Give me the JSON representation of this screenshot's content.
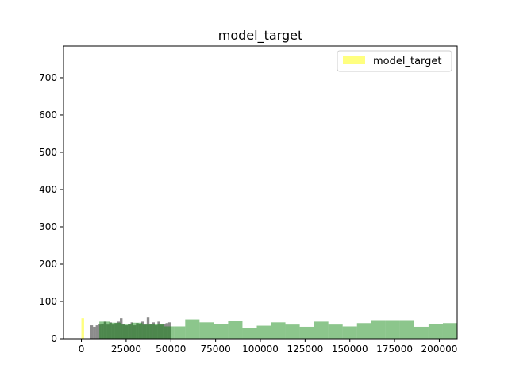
{
  "chart_data": {
    "type": "histogram",
    "title": "model_target",
    "xlabel": "",
    "ylabel": "",
    "xlim": [
      -10000,
      210000
    ],
    "ylim": [
      0,
      785
    ],
    "xticks": [
      0,
      25000,
      50000,
      75000,
      100000,
      125000,
      150000,
      175000,
      200000
    ],
    "yticks": [
      0,
      100,
      200,
      300,
      400,
      500,
      600,
      700
    ],
    "grid": false,
    "legend": {
      "position": "top-right",
      "entries": [
        "model_target"
      ]
    },
    "series": [
      {
        "name": "model_target",
        "color": "#ffff00",
        "alpha": 0.5,
        "bins": [
          {
            "x0": 0,
            "x1": 1500,
            "count": 55
          }
        ]
      },
      {
        "color": "#000000",
        "alpha": 0.45,
        "bins": [
          {
            "x0": 5000,
            "x1": 6500,
            "count": 36
          },
          {
            "x0": 6500,
            "x1": 8000,
            "count": 32
          },
          {
            "x0": 8000,
            "x1": 9500,
            "count": 36
          },
          {
            "x0": 9500,
            "x1": 11000,
            "count": 38
          },
          {
            "x0": 11000,
            "x1": 12500,
            "count": 40
          },
          {
            "x0": 12500,
            "x1": 14000,
            "count": 46
          },
          {
            "x0": 14000,
            "x1": 15500,
            "count": 38
          },
          {
            "x0": 15500,
            "x1": 17000,
            "count": 44
          },
          {
            "x0": 17000,
            "x1": 18500,
            "count": 38
          },
          {
            "x0": 18500,
            "x1": 20000,
            "count": 42
          },
          {
            "x0": 20000,
            "x1": 21500,
            "count": 46
          },
          {
            "x0": 21500,
            "x1": 23000,
            "count": 55
          },
          {
            "x0": 23000,
            "x1": 24500,
            "count": 40
          },
          {
            "x0": 24500,
            "x1": 26000,
            "count": 36
          },
          {
            "x0": 26000,
            "x1": 27500,
            "count": 40
          },
          {
            "x0": 27500,
            "x1": 29000,
            "count": 44
          },
          {
            "x0": 29000,
            "x1": 30500,
            "count": 36
          },
          {
            "x0": 30500,
            "x1": 32000,
            "count": 42
          },
          {
            "x0": 32000,
            "x1": 33500,
            "count": 40
          },
          {
            "x0": 33500,
            "x1": 35000,
            "count": 46
          },
          {
            "x0": 35000,
            "x1": 36500,
            "count": 38
          },
          {
            "x0": 36500,
            "x1": 38000,
            "count": 57
          },
          {
            "x0": 38000,
            "x1": 39500,
            "count": 40
          },
          {
            "x0": 39500,
            "x1": 41000,
            "count": 44
          },
          {
            "x0": 41000,
            "x1": 42500,
            "count": 36
          },
          {
            "x0": 42500,
            "x1": 44000,
            "count": 46
          },
          {
            "x0": 44000,
            "x1": 45500,
            "count": 38
          },
          {
            "x0": 45500,
            "x1": 47000,
            "count": 40
          },
          {
            "x0": 47000,
            "x1": 48500,
            "count": 42
          },
          {
            "x0": 48500,
            "x1": 50000,
            "count": 44
          }
        ]
      },
      {
        "color": "#008000",
        "alpha": 0.45,
        "bins": [
          {
            "x0": 10000,
            "x1": 16000,
            "count": 46
          },
          {
            "x0": 16000,
            "x1": 22000,
            "count": 43
          },
          {
            "x0": 22000,
            "x1": 28000,
            "count": 38
          },
          {
            "x0": 28000,
            "x1": 34000,
            "count": 43
          },
          {
            "x0": 34000,
            "x1": 40000,
            "count": 38
          },
          {
            "x0": 40000,
            "x1": 46000,
            "count": 40
          },
          {
            "x0": 46000,
            "x1": 52000,
            "count": 33
          },
          {
            "x0": 52000,
            "x1": 58000,
            "count": 33
          },
          {
            "x0": 58000,
            "x1": 66000,
            "count": 52
          },
          {
            "x0": 66000,
            "x1": 74000,
            "count": 44
          },
          {
            "x0": 74000,
            "x1": 82000,
            "count": 40
          },
          {
            "x0": 82000,
            "x1": 90000,
            "count": 48
          },
          {
            "x0": 90000,
            "x1": 98000,
            "count": 29
          },
          {
            "x0": 98000,
            "x1": 106000,
            "count": 35
          },
          {
            "x0": 106000,
            "x1": 114000,
            "count": 44
          },
          {
            "x0": 114000,
            "x1": 122000,
            "count": 38
          },
          {
            "x0": 122000,
            "x1": 130000,
            "count": 32
          },
          {
            "x0": 130000,
            "x1": 138000,
            "count": 46
          },
          {
            "x0": 138000,
            "x1": 146000,
            "count": 38
          },
          {
            "x0": 146000,
            "x1": 154000,
            "count": 33
          },
          {
            "x0": 154000,
            "x1": 162000,
            "count": 42
          },
          {
            "x0": 162000,
            "x1": 170000,
            "count": 50
          },
          {
            "x0": 170000,
            "x1": 178000,
            "count": 50
          },
          {
            "x0": 178000,
            "x1": 186000,
            "count": 50
          },
          {
            "x0": 186000,
            "x1": 194000,
            "count": 32
          },
          {
            "x0": 194000,
            "x1": 202000,
            "count": 40
          },
          {
            "x0": 202000,
            "x1": 210000,
            "count": 42
          }
        ]
      }
    ]
  }
}
